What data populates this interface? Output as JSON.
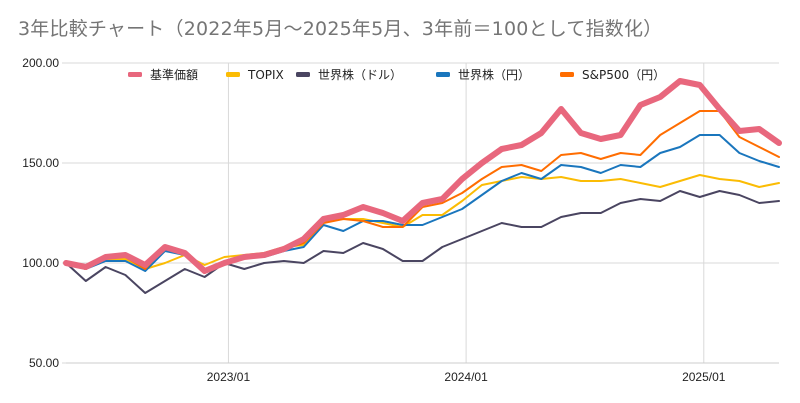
{
  "chart_data": {
    "type": "line",
    "title": "3年比較チャート（2022年5月～2025年5月、3年前＝100として指数化）",
    "xlabel": "",
    "ylabel": "",
    "ylim": [
      50,
      200
    ],
    "yticks": [
      "200.00",
      "150.00",
      "100.00",
      "50.00"
    ],
    "ytick_values": [
      200,
      150,
      100,
      50
    ],
    "xticks": [
      {
        "label": "2023/01",
        "index": 8
      },
      {
        "label": "2024/01",
        "index": 20
      },
      {
        "label": "2025/01",
        "index": 32
      }
    ],
    "grid": true,
    "legend_position": "top",
    "x": [
      "2022/05",
      "2022/06",
      "2022/07",
      "2022/08",
      "2022/09",
      "2022/10",
      "2022/11",
      "2022/12",
      "2023/01",
      "2023/02",
      "2023/03",
      "2023/04",
      "2023/05",
      "2023/06",
      "2023/07",
      "2023/08",
      "2023/09",
      "2023/10",
      "2023/11",
      "2023/12",
      "2024/01",
      "2024/02",
      "2024/03",
      "2024/04",
      "2024/05",
      "2024/06",
      "2024/07",
      "2024/08",
      "2024/09",
      "2024/10",
      "2024/11",
      "2024/12",
      "2025/01",
      "2025/02",
      "2025/03",
      "2025/04",
      "2025/05"
    ],
    "series": [
      {
        "name": "世界株（ドル）",
        "color": "#4a4561",
        "width": "thin",
        "values": [
          100,
          91,
          98,
          94,
          85,
          91,
          97,
          93,
          100,
          97,
          100,
          101,
          100,
          106,
          105,
          110,
          107,
          101,
          101,
          108,
          112,
          116,
          120,
          118,
          118,
          123,
          125,
          125,
          130,
          132,
          131,
          136,
          133,
          136,
          134,
          130,
          131
        ]
      },
      {
        "name": "TOPIX",
        "color": "#fbbc04",
        "width": "thin",
        "values": [
          100,
          97,
          102,
          102,
          97,
          100,
          104,
          99,
          103,
          104,
          105,
          108,
          109,
          121,
          122,
          122,
          120,
          118,
          124,
          124,
          131,
          139,
          141,
          143,
          142,
          143,
          141,
          141,
          142,
          140,
          138,
          141,
          144,
          142,
          141,
          138,
          140
        ]
      },
      {
        "name": "世界株（円）",
        "color": "#1a76bd",
        "width": "thin",
        "values": [
          100,
          97,
          101,
          101,
          96,
          106,
          104,
          96,
          101,
          103,
          103,
          106,
          108,
          119,
          116,
          121,
          121,
          119,
          119,
          123,
          127,
          134,
          141,
          145,
          142,
          149,
          148,
          145,
          149,
          148,
          155,
          158,
          164,
          164,
          155,
          151,
          148
        ]
      },
      {
        "name": "S&P500（円）",
        "color": "#ff6d01",
        "width": "thin",
        "values": [
          100,
          97,
          103,
          103,
          97,
          108,
          105,
          95,
          100,
          103,
          104,
          107,
          110,
          120,
          122,
          121,
          118,
          118,
          128,
          130,
          135,
          142,
          148,
          149,
          146,
          154,
          155,
          152,
          155,
          154,
          164,
          170,
          176,
          176,
          163,
          158,
          153
        ]
      },
      {
        "name": "基準価額",
        "color": "#e8677d",
        "width": "thick",
        "values": [
          100,
          98,
          103,
          104,
          99,
          108,
          105,
          96,
          100,
          103,
          104,
          107,
          112,
          122,
          124,
          128,
          125,
          121,
          130,
          132,
          142,
          150,
          157,
          159,
          165,
          177,
          165,
          162,
          164,
          179,
          183,
          191,
          189,
          177,
          166,
          167,
          160
        ]
      }
    ],
    "legend_order": [
      "基準価額",
      "TOPIX",
      "世界株（ドル）",
      "世界株（円）",
      "S&P500（円）"
    ]
  }
}
